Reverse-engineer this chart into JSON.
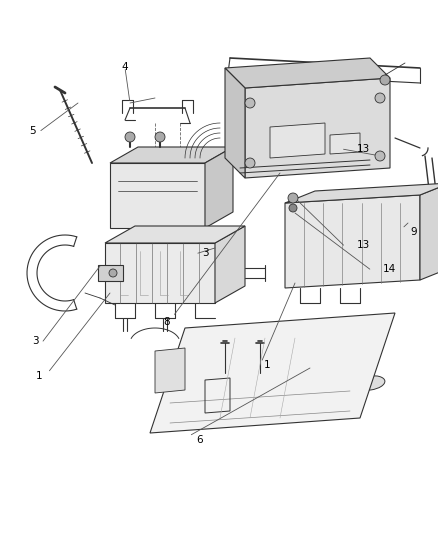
{
  "bg_color": "#ffffff",
  "line_color": "#555555",
  "dark_line": "#333333",
  "label_color": "#000000",
  "fig_width": 4.38,
  "fig_height": 5.33,
  "dpi": 100,
  "label_fontsize": 7.5,
  "labels": {
    "4": [
      0.285,
      0.875,
      "4"
    ],
    "5": [
      0.075,
      0.755,
      "5"
    ],
    "3a": [
      0.08,
      0.36,
      "3"
    ],
    "3b": [
      0.47,
      0.525,
      "3"
    ],
    "1a": [
      0.09,
      0.295,
      "1"
    ],
    "8": [
      0.38,
      0.395,
      "8"
    ],
    "13a": [
      0.83,
      0.72,
      "13"
    ],
    "9": [
      0.945,
      0.565,
      "9"
    ],
    "1b": [
      0.61,
      0.315,
      "1"
    ],
    "13b": [
      0.83,
      0.54,
      "13"
    ],
    "14": [
      0.89,
      0.495,
      "14"
    ],
    "6": [
      0.455,
      0.175,
      "6"
    ]
  }
}
